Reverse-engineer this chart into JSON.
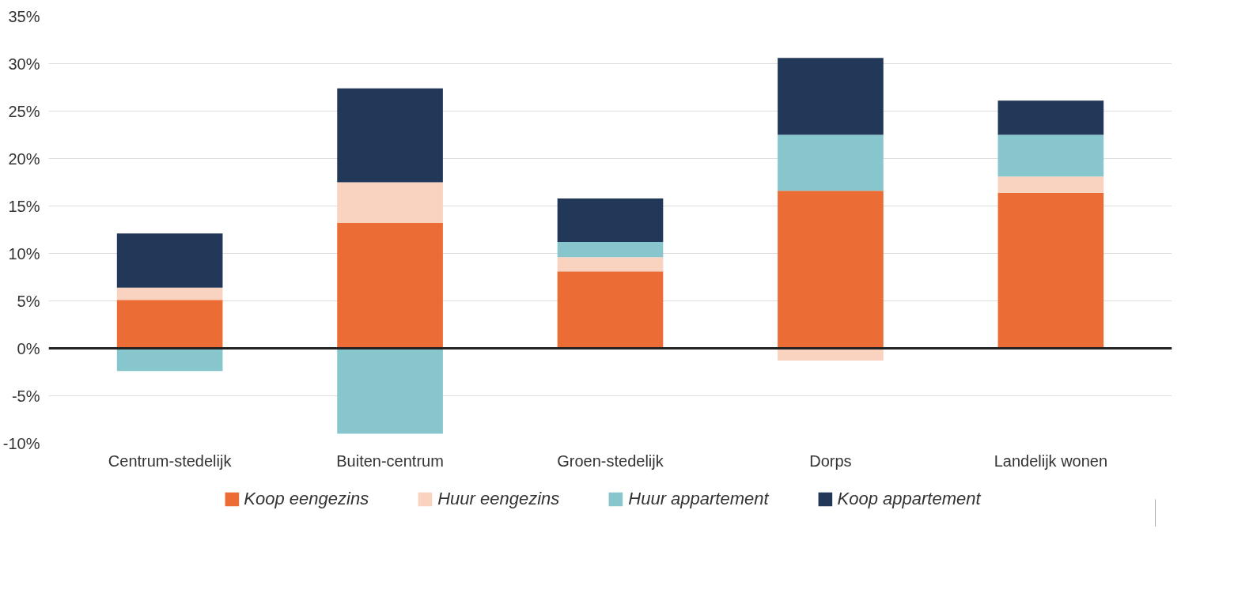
{
  "chart_data": {
    "type": "bar",
    "stacked": true,
    "categories": [
      "Centrum-stedelijk",
      "Buiten-centrum",
      "Groen-stedelijk",
      "Dorps",
      "Landelijk wonen"
    ],
    "series": [
      {
        "name": "Koop eengezins",
        "color": "#ec6c35",
        "values": [
          5.1,
          13.2,
          8.1,
          16.6,
          16.4
        ]
      },
      {
        "name": "Huur eengezins",
        "color": "#f9d3c0",
        "values": [
          1.3,
          4.3,
          1.5,
          -1.3,
          1.7
        ]
      },
      {
        "name": "Huur appartement",
        "color": "#86c6cc",
        "values": [
          -2.4,
          -9.0,
          1.6,
          5.9,
          4.4
        ]
      },
      {
        "name": "Koop appartement",
        "color": "#223859",
        "values": [
          5.7,
          9.9,
          4.6,
          8.1,
          3.6
        ]
      }
    ],
    "ylim": [
      -10,
      35
    ],
    "yticks": [
      {
        "value": -10,
        "label": "-10%"
      },
      {
        "value": -5,
        "label": "-5%"
      },
      {
        "value": 0,
        "label": "0%"
      },
      {
        "value": 5,
        "label": "5%"
      },
      {
        "value": 10,
        "label": "10%"
      },
      {
        "value": 15,
        "label": "15%"
      },
      {
        "value": 20,
        "label": "20%"
      },
      {
        "value": 25,
        "label": "25%"
      },
      {
        "value": 30,
        "label": "30%"
      },
      {
        "value": 35,
        "label": "35%"
      }
    ],
    "grid": "y",
    "legend": "bottom",
    "ref_lines": [
      {
        "axis": "y",
        "value": 0,
        "color": "#222222"
      }
    ]
  }
}
